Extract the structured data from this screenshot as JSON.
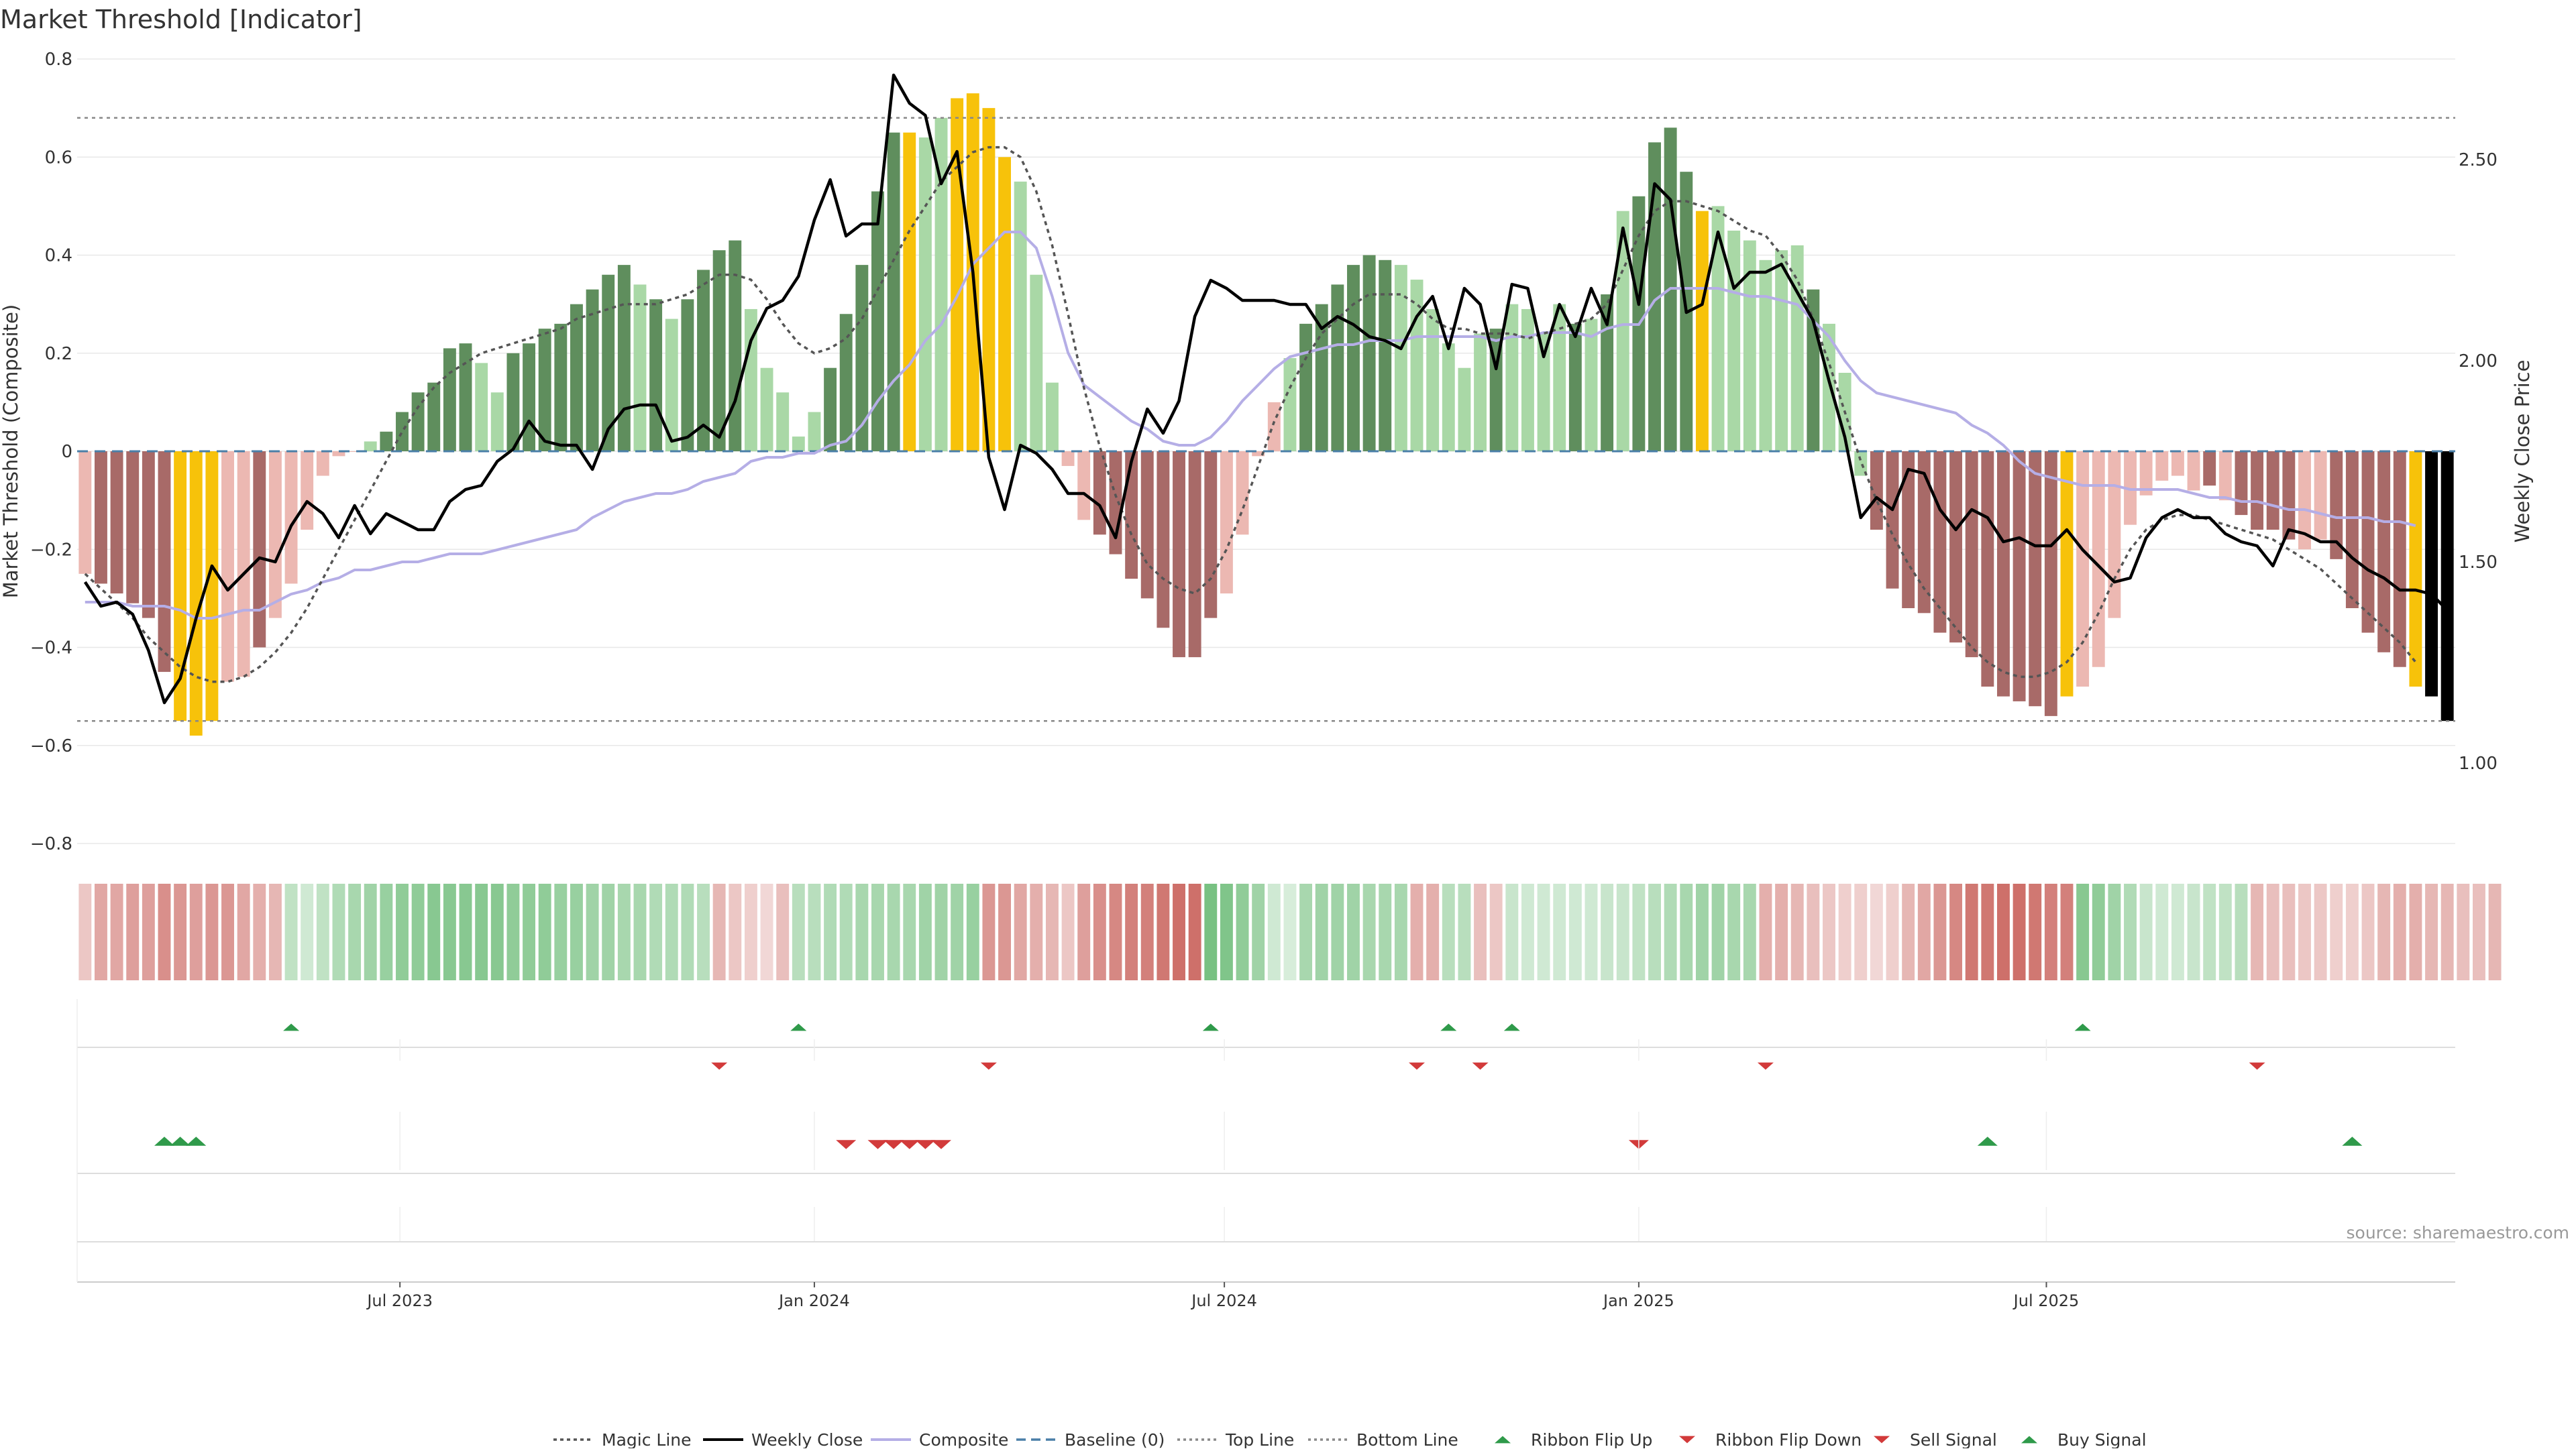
{
  "title": "Market Threshold [Indicator]",
  "source": "source: sharemaestro.com",
  "colors": {
    "strong_green": "#5f8e5d",
    "light_green": "#a9d8a6",
    "strong_red": "#a86a68",
    "light_red": "#ecb8b2",
    "extreme": "#f7c20a",
    "magic": "#555555",
    "weekly": "#000000",
    "composite": "#b5aee6",
    "baseline": "#4a7fa8",
    "threshold": "#888888",
    "signal_up": "#2f9a4a",
    "signal_down": "#d23a3a"
  },
  "chart_data": {
    "type": "bar",
    "title": "Market Threshold [Indicator]",
    "ylabel": "Market Threshold (Composite)",
    "y2label": "Weekly Close Price",
    "ylim": [
      -0.8,
      0.8
    ],
    "y2lim": [
      0.8,
      2.75
    ],
    "yticks": [
      "0.8",
      "0.6",
      "0.4",
      "0.2",
      "0",
      "−0.2",
      "−0.4",
      "−0.6",
      "−0.8"
    ],
    "y2ticks": [
      "2.50",
      "2.00",
      "1.50",
      "1.00"
    ],
    "xticks": [
      "Jul 2023",
      "Jan 2024",
      "Jul 2024",
      "Jan 2025",
      "Jul 2025"
    ],
    "xtick_weeks": [
      19.86,
      46.0,
      71.86,
      98.0,
      123.71
    ],
    "week_start": "2023-02-24",
    "top_line": 0.68,
    "bottom_line": -0.55,
    "baseline": 0,
    "composite": [
      -0.25,
      -0.27,
      -0.29,
      -0.31,
      -0.34,
      -0.45,
      -0.55,
      -0.58,
      -0.55,
      -0.47,
      -0.46,
      -0.4,
      -0.34,
      -0.27,
      -0.16,
      -0.05,
      -0.01,
      0.0,
      0.02,
      0.04,
      0.08,
      0.12,
      0.14,
      0.21,
      0.22,
      0.18,
      0.12,
      0.2,
      0.22,
      0.25,
      0.26,
      0.3,
      0.33,
      0.36,
      0.38,
      0.34,
      0.31,
      0.27,
      0.31,
      0.37,
      0.41,
      0.43,
      0.29,
      0.17,
      0.12,
      0.03,
      0.08,
      0.17,
      0.28,
      0.38,
      0.53,
      0.65,
      0.65,
      0.64,
      0.68,
      0.72,
      0.73,
      0.7,
      0.6,
      0.55,
      0.36,
      0.14,
      -0.03,
      -0.14,
      -0.17,
      -0.21,
      -0.26,
      -0.3,
      -0.36,
      -0.42,
      -0.42,
      -0.34,
      -0.29,
      -0.17,
      -0.01,
      0.1,
      0.19,
      0.26,
      0.3,
      0.34,
      0.38,
      0.4,
      0.39,
      0.38,
      0.35,
      0.29,
      0.22,
      0.17,
      0.24,
      0.25,
      0.3,
      0.29,
      0.24,
      0.3,
      0.26,
      0.27,
      0.32,
      0.49,
      0.52,
      0.63,
      0.66,
      0.57,
      0.49,
      0.5,
      0.45,
      0.43,
      0.39,
      0.41,
      0.42,
      0.33,
      0.26,
      0.16,
      -0.05,
      -0.16,
      -0.28,
      -0.32,
      -0.33,
      -0.37,
      -0.39,
      -0.42,
      -0.48,
      -0.5,
      -0.51,
      -0.52,
      -0.54,
      -0.5,
      -0.48,
      -0.44,
      -0.34,
      -0.15,
      -0.09,
      -0.06,
      -0.05,
      -0.08,
      -0.07,
      -0.1,
      -0.13,
      -0.16,
      -0.16,
      -0.18,
      -0.2,
      -0.18,
      -0.22,
      -0.32,
      -0.37,
      -0.41,
      -0.44,
      -0.48,
      -0.5,
      -0.55
    ],
    "bar_colors": [
      "LR",
      "SR",
      "SR",
      "SR",
      "SR",
      "SR",
      "EX",
      "EX",
      "EX",
      "LR",
      "LR",
      "SR",
      "LR",
      "LR",
      "LR",
      "LR",
      "LR",
      "LR",
      "LG",
      "SG",
      "SG",
      "SG",
      "SG",
      "SG",
      "SG",
      "LG",
      "LG",
      "SG",
      "SG",
      "SG",
      "SG",
      "SG",
      "SG",
      "SG",
      "SG",
      "LG",
      "SG",
      "LG",
      "SG",
      "SG",
      "SG",
      "SG",
      "LG",
      "LG",
      "LG",
      "LG",
      "LG",
      "SG",
      "SG",
      "SG",
      "SG",
      "SG",
      "EX",
      "LG",
      "LG",
      "EX",
      "EX",
      "EX",
      "EX",
      "LG",
      "LG",
      "LG",
      "LR",
      "LR",
      "SR",
      "SR",
      "SR",
      "SR",
      "SR",
      "SR",
      "SR",
      "SR",
      "LR",
      "LR",
      "LR",
      "LR",
      "LG",
      "SG",
      "SG",
      "SG",
      "SG",
      "SG",
      "SG",
      "LG",
      "LG",
      "LG",
      "LG",
      "LG",
      "LG",
      "SG",
      "LG",
      "LG",
      "LG",
      "LG",
      "SG",
      "LG",
      "SG",
      "LG",
      "SG",
      "SG",
      "SG",
      "SG",
      "EX",
      "LG",
      "LG",
      "LG",
      "LG",
      "LG",
      "LG",
      "SG",
      "LG",
      "LG",
      "LG",
      "SR",
      "SR",
      "SR",
      "SR",
      "SR",
      "SR",
      "SR",
      "SR",
      "SR",
      "SR",
      "SR",
      "SR",
      "EX",
      "LR",
      "LR",
      "LR",
      "LR",
      "LR",
      "LR",
      "LR",
      "LR",
      "SR",
      "LR",
      "SR",
      "SR",
      "SR",
      "SR",
      "LR",
      "LR",
      "SR",
      "SR",
      "SR",
      "SR",
      "SR",
      "EX"
    ],
    "magic_line": [
      -0.25,
      -0.28,
      -0.31,
      -0.34,
      -0.38,
      -0.41,
      -0.44,
      -0.46,
      -0.47,
      -0.47,
      -0.46,
      -0.44,
      -0.41,
      -0.37,
      -0.32,
      -0.26,
      -0.2,
      -0.14,
      -0.08,
      -0.02,
      0.04,
      0.09,
      0.13,
      0.16,
      0.18,
      0.2,
      0.21,
      0.22,
      0.23,
      0.24,
      0.25,
      0.27,
      0.28,
      0.29,
      0.3,
      0.3,
      0.3,
      0.31,
      0.32,
      0.34,
      0.36,
      0.36,
      0.35,
      0.31,
      0.26,
      0.22,
      0.2,
      0.21,
      0.23,
      0.27,
      0.33,
      0.39,
      0.45,
      0.5,
      0.55,
      0.58,
      0.61,
      0.62,
      0.62,
      0.6,
      0.53,
      0.42,
      0.28,
      0.13,
      0.01,
      -0.09,
      -0.17,
      -0.23,
      -0.26,
      -0.28,
      -0.29,
      -0.26,
      -0.2,
      -0.12,
      -0.03,
      0.06,
      0.13,
      0.19,
      0.24,
      0.27,
      0.3,
      0.32,
      0.32,
      0.32,
      0.3,
      0.27,
      0.25,
      0.25,
      0.24,
      0.24,
      0.24,
      0.23,
      0.24,
      0.25,
      0.26,
      0.27,
      0.3,
      0.37,
      0.44,
      0.49,
      0.51,
      0.51,
      0.5,
      0.49,
      0.47,
      0.45,
      0.44,
      0.4,
      0.35,
      0.27,
      0.18,
      0.08,
      -0.02,
      -0.1,
      -0.17,
      -0.23,
      -0.28,
      -0.32,
      -0.36,
      -0.4,
      -0.43,
      -0.45,
      -0.46,
      -0.46,
      -0.45,
      -0.43,
      -0.39,
      -0.33,
      -0.26,
      -0.2,
      -0.16,
      -0.14,
      -0.13,
      -0.13,
      -0.14,
      -0.15,
      -0.16,
      -0.17,
      -0.18,
      -0.2,
      -0.22,
      -0.24,
      -0.27,
      -0.3,
      -0.33,
      -0.36,
      -0.39,
      -0.43
    ],
    "weekly_close": [
      1.45,
      1.39,
      1.4,
      1.37,
      1.28,
      1.15,
      1.21,
      1.36,
      1.49,
      1.43,
      1.47,
      1.51,
      1.5,
      1.59,
      1.65,
      1.62,
      1.56,
      1.64,
      1.57,
      1.62,
      1.6,
      1.58,
      1.58,
      1.65,
      1.68,
      1.69,
      1.75,
      1.78,
      1.85,
      1.8,
      1.79,
      1.79,
      1.73,
      1.83,
      1.88,
      1.89,
      1.89,
      1.8,
      1.81,
      1.84,
      1.81,
      1.9,
      2.05,
      2.13,
      2.15,
      2.21,
      2.35,
      2.45,
      2.31,
      2.34,
      2.34,
      2.71,
      2.64,
      2.61,
      2.44,
      2.52,
      2.22,
      1.76,
      1.63,
      1.79,
      1.77,
      1.73,
      1.67,
      1.67,
      1.64,
      1.56,
      1.75,
      1.88,
      1.82,
      1.9,
      2.11,
      2.2,
      2.18,
      2.15,
      2.15,
      2.15,
      2.14,
      2.14,
      2.08,
      2.11,
      2.09,
      2.06,
      2.05,
      2.03,
      2.11,
      2.16,
      2.03,
      2.18,
      2.14,
      1.98,
      2.19,
      2.18,
      2.01,
      2.14,
      2.06,
      2.18,
      2.09,
      2.33,
      2.14,
      2.44,
      2.4,
      2.12,
      2.14,
      2.32,
      2.18,
      2.22,
      2.22,
      2.24,
      2.17,
      2.1,
      1.95,
      1.81,
      1.61,
      1.66,
      1.63,
      1.73,
      1.72,
      1.63,
      1.58,
      1.63,
      1.61,
      1.55,
      1.56,
      1.54,
      1.54,
      1.58,
      1.53,
      1.49,
      1.45,
      1.46,
      1.56,
      1.61,
      1.63,
      1.61,
      1.61,
      1.57,
      1.55,
      1.54,
      1.49,
      1.58,
      1.57,
      1.55,
      1.55,
      1.51,
      1.48,
      1.46,
      1.43,
      1.43,
      1.42,
      1.38
    ],
    "composite_line": [
      1.4,
      1.4,
      1.4,
      1.39,
      1.39,
      1.39,
      1.38,
      1.36,
      1.36,
      1.37,
      1.38,
      1.38,
      1.4,
      1.42,
      1.43,
      1.45,
      1.46,
      1.48,
      1.48,
      1.49,
      1.5,
      1.5,
      1.51,
      1.52,
      1.52,
      1.52,
      1.53,
      1.54,
      1.55,
      1.56,
      1.57,
      1.58,
      1.61,
      1.63,
      1.65,
      1.66,
      1.67,
      1.67,
      1.68,
      1.7,
      1.71,
      1.72,
      1.75,
      1.76,
      1.76,
      1.77,
      1.77,
      1.79,
      1.8,
      1.84,
      1.9,
      1.95,
      1.99,
      2.05,
      2.09,
      2.16,
      2.24,
      2.28,
      2.32,
      2.32,
      2.28,
      2.16,
      2.02,
      1.94,
      1.91,
      1.88,
      1.85,
      1.83,
      1.8,
      1.79,
      1.79,
      1.81,
      1.85,
      1.9,
      1.94,
      1.98,
      2.01,
      2.02,
      2.03,
      2.04,
      2.04,
      2.05,
      2.05,
      2.05,
      2.06,
      2.06,
      2.06,
      2.06,
      2.06,
      2.05,
      2.06,
      2.06,
      2.07,
      2.07,
      2.07,
      2.06,
      2.08,
      2.09,
      2.09,
      2.15,
      2.18,
      2.18,
      2.18,
      2.18,
      2.17,
      2.16,
      2.16,
      2.15,
      2.14,
      2.1,
      2.06,
      2.0,
      1.95,
      1.92,
      1.91,
      1.9,
      1.89,
      1.88,
      1.87,
      1.84,
      1.82,
      1.79,
      1.75,
      1.72,
      1.71,
      1.7,
      1.69,
      1.69,
      1.69,
      1.68,
      1.68,
      1.68,
      1.68,
      1.67,
      1.66,
      1.66,
      1.65,
      1.65,
      1.64,
      1.63,
      1.63,
      1.62,
      1.61,
      1.61,
      1.61,
      1.6,
      1.6,
      1.59
    ],
    "ribbon": [
      0.35,
      0.55,
      0.55,
      0.6,
      0.6,
      0.7,
      0.65,
      0.6,
      0.65,
      0.65,
      0.55,
      0.5,
      0.45,
      0.4,
      0.3,
      0.4,
      0.5,
      0.55,
      0.6,
      0.65,
      0.7,
      0.7,
      0.75,
      0.75,
      0.75,
      0.75,
      0.75,
      0.7,
      0.7,
      0.7,
      0.65,
      0.65,
      0.6,
      0.6,
      0.55,
      0.55,
      0.5,
      0.5,
      0.5,
      0.45,
      0.45,
      0.35,
      0.3,
      0.25,
      0.4,
      0.45,
      0.45,
      0.5,
      0.5,
      0.55,
      0.55,
      0.55,
      0.55,
      0.6,
      0.6,
      0.6,
      0.65,
      0.65,
      0.65,
      0.55,
      0.5,
      0.45,
      0.35,
      0.6,
      0.7,
      0.75,
      0.8,
      0.8,
      0.85,
      0.9,
      0.9,
      0.85,
      0.8,
      0.7,
      0.6,
      0.3,
      0.25,
      0.55,
      0.6,
      0.6,
      0.6,
      0.55,
      0.55,
      0.55,
      0.5,
      0.5,
      0.45,
      0.45,
      0.4,
      0.35,
      0.35,
      0.3,
      -0.3,
      -0.3,
      0.3,
      0.3,
      0.35,
      0.35,
      0.4,
      0.45,
      0.5,
      0.55,
      0.6,
      0.6,
      0.55,
      0.55,
      0.5,
      0.5,
      0.45,
      0.4,
      0.35,
      0.3,
      0.3,
      0.25,
      0.3,
      0.45,
      0.55,
      0.65,
      0.75,
      0.85,
      0.85,
      0.9,
      0.9,
      0.85,
      0.8,
      0.8,
      0.75,
      0.7,
      0.6,
      0.5,
      0.35,
      0.3,
      0.3,
      0.35,
      0.4,
      0.4,
      0.45,
      0.45,
      0.4,
      0.4,
      0.35,
      0.35,
      0.3,
      0.3,
      0.35,
      0.45,
      0.5,
      0.5,
      0.45,
      0.45,
      0.4,
      0.4,
      0.45
    ],
    "ribbon_flip_up_weeks": [
      13,
      45,
      71,
      86,
      90,
      126
    ],
    "ribbon_flip_down_weeks": [
      40,
      57,
      84,
      88,
      106,
      137
    ],
    "sell_signal_weeks": [
      48,
      50,
      51,
      52,
      53,
      54,
      98
    ],
    "buy_signal_weeks": [
      5,
      6,
      7,
      120,
      143
    ],
    "legend": [
      "Magic Line",
      "Weekly Close",
      "Composite",
      "Baseline (0)",
      "Top Line",
      "Bottom Line",
      "Ribbon Flip Up",
      "Ribbon Flip Down",
      "Sell Signal",
      "Buy Signal"
    ],
    "legend_position": "bottom-center",
    "grid": true
  }
}
